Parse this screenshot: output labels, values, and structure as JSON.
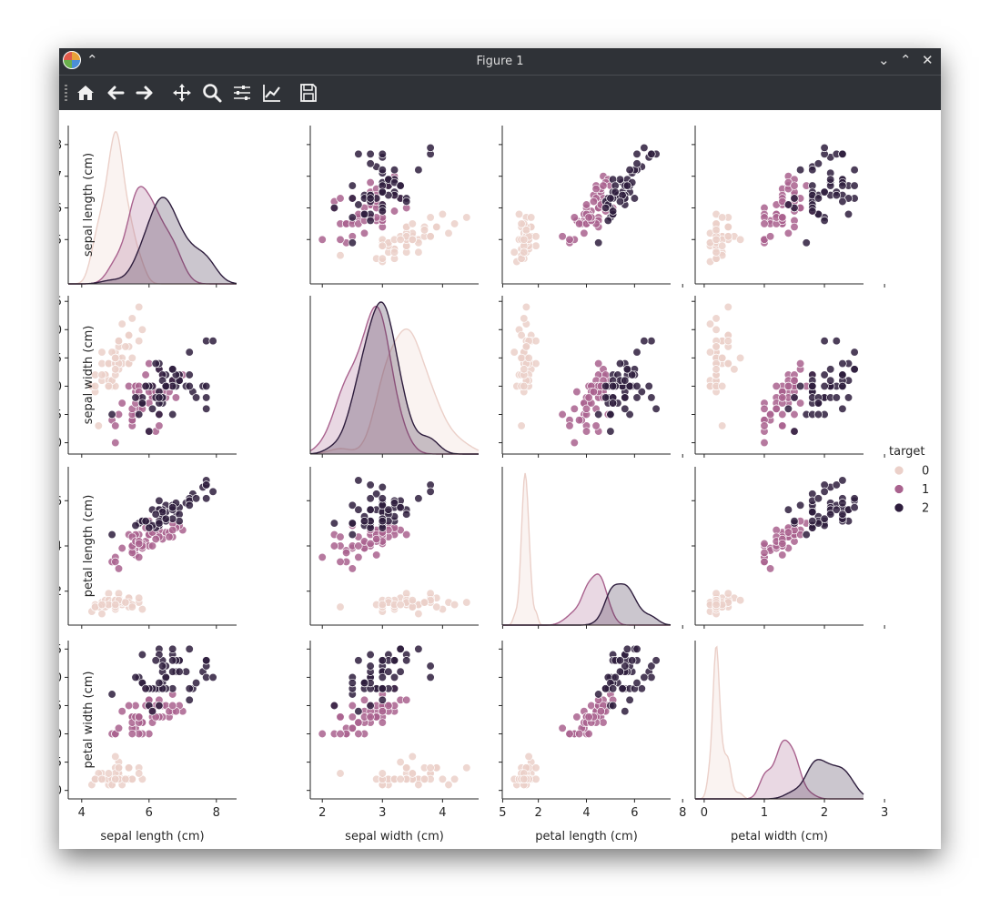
{
  "window": {
    "title": "Figure 1"
  },
  "toolbar": {
    "buttons": [
      "home-icon",
      "back-arrow-icon",
      "forward-arrow-icon",
      "pan-icon",
      "zoom-icon",
      "configure-subplots-icon",
      "edit-axis-icon",
      "save-icon"
    ]
  },
  "colors": {
    "class_0": "#ebd0c9",
    "class_1": "#a9628e",
    "class_2": "#2e1d3d",
    "titlebar": "#2f3237"
  },
  "chart_data": {
    "type": "scatter",
    "kind": "pairplot",
    "variables": [
      "sepal length (cm)",
      "sepal width (cm)",
      "petal length (cm)",
      "petal width (cm)"
    ],
    "axis_ranges": [
      [
        3.6,
        8.6
      ],
      [
        1.8,
        4.6
      ],
      [
        0.5,
        7.5
      ],
      [
        -0.15,
        2.65
      ]
    ],
    "ticks": [
      [
        5,
        6,
        7,
        8
      ],
      [
        2.0,
        2.5,
        3.0,
        3.5,
        4.0,
        4.5
      ],
      [
        2,
        4,
        6
      ],
      [
        0.0,
        0.5,
        1.0,
        1.5,
        2.0,
        2.5
      ]
    ],
    "xticks": [
      [
        4,
        6,
        8
      ],
      [
        2,
        3,
        4,
        5
      ],
      [
        2,
        4,
        6,
        8
      ],
      [
        0,
        1,
        2,
        3
      ]
    ],
    "ytick_labels": [
      [
        "5",
        "6",
        "7",
        "8"
      ],
      [
        "2.0",
        "2.5",
        "3.0",
        "3.5",
        "4.0",
        "4.5"
      ],
      [
        "2",
        "4",
        "6"
      ],
      [
        "0.0",
        "0.5",
        "1.0",
        "1.5",
        "2.0",
        "2.5"
      ]
    ],
    "legend": {
      "title": "target",
      "labels": [
        "0",
        "1",
        "2"
      ],
      "placement": "right"
    },
    "diagonal": "kde",
    "series": [
      {
        "name": "0",
        "points": [
          [
            5.1,
            3.5,
            1.4,
            0.2
          ],
          [
            4.9,
            3.0,
            1.4,
            0.2
          ],
          [
            4.7,
            3.2,
            1.3,
            0.2
          ],
          [
            4.6,
            3.1,
            1.5,
            0.2
          ],
          [
            5.0,
            3.6,
            1.4,
            0.2
          ],
          [
            5.4,
            3.9,
            1.7,
            0.4
          ],
          [
            4.6,
            3.4,
            1.4,
            0.3
          ],
          [
            5.0,
            3.4,
            1.5,
            0.2
          ],
          [
            4.4,
            2.9,
            1.4,
            0.2
          ],
          [
            4.9,
            3.1,
            1.5,
            0.1
          ],
          [
            5.4,
            3.7,
            1.5,
            0.2
          ],
          [
            4.8,
            3.4,
            1.6,
            0.2
          ],
          [
            4.8,
            3.0,
            1.4,
            0.1
          ],
          [
            4.3,
            3.0,
            1.1,
            0.1
          ],
          [
            5.8,
            4.0,
            1.2,
            0.2
          ],
          [
            5.7,
            4.4,
            1.5,
            0.4
          ],
          [
            5.4,
            3.9,
            1.3,
            0.4
          ],
          [
            5.1,
            3.5,
            1.4,
            0.3
          ],
          [
            5.7,
            3.8,
            1.7,
            0.3
          ],
          [
            5.1,
            3.8,
            1.5,
            0.3
          ],
          [
            5.4,
            3.4,
            1.7,
            0.2
          ],
          [
            5.1,
            3.7,
            1.5,
            0.4
          ],
          [
            4.6,
            3.6,
            1.0,
            0.2
          ],
          [
            5.1,
            3.3,
            1.7,
            0.5
          ],
          [
            4.8,
            3.4,
            1.9,
            0.2
          ],
          [
            5.0,
            3.0,
            1.6,
            0.2
          ],
          [
            5.0,
            3.4,
            1.6,
            0.4
          ],
          [
            5.2,
            3.5,
            1.5,
            0.2
          ],
          [
            5.2,
            3.4,
            1.4,
            0.2
          ],
          [
            4.7,
            3.2,
            1.6,
            0.2
          ],
          [
            4.8,
            3.1,
            1.6,
            0.2
          ],
          [
            5.4,
            3.4,
            1.5,
            0.4
          ],
          [
            5.2,
            4.1,
            1.5,
            0.1
          ],
          [
            5.5,
            4.2,
            1.4,
            0.2
          ],
          [
            4.9,
            3.1,
            1.5,
            0.2
          ],
          [
            5.0,
            3.2,
            1.2,
            0.2
          ],
          [
            5.5,
            3.5,
            1.3,
            0.2
          ],
          [
            4.9,
            3.6,
            1.4,
            0.1
          ],
          [
            4.4,
            3.0,
            1.3,
            0.2
          ],
          [
            5.1,
            3.4,
            1.5,
            0.2
          ],
          [
            5.0,
            3.5,
            1.3,
            0.3
          ],
          [
            4.5,
            2.3,
            1.3,
            0.3
          ],
          [
            4.4,
            3.2,
            1.3,
            0.2
          ],
          [
            5.0,
            3.5,
            1.6,
            0.6
          ],
          [
            5.1,
            3.8,
            1.9,
            0.4
          ],
          [
            4.8,
            3.0,
            1.4,
            0.3
          ],
          [
            5.1,
            3.8,
            1.6,
            0.2
          ],
          [
            4.6,
            3.2,
            1.4,
            0.2
          ],
          [
            5.3,
            3.7,
            1.5,
            0.2
          ],
          [
            5.0,
            3.3,
            1.4,
            0.2
          ]
        ]
      },
      {
        "name": "1",
        "points": [
          [
            7.0,
            3.2,
            4.7,
            1.4
          ],
          [
            6.4,
            3.2,
            4.5,
            1.5
          ],
          [
            6.9,
            3.1,
            4.9,
            1.5
          ],
          [
            5.5,
            2.3,
            4.0,
            1.3
          ],
          [
            6.5,
            2.8,
            4.6,
            1.5
          ],
          [
            5.7,
            2.8,
            4.5,
            1.3
          ],
          [
            6.3,
            3.3,
            4.7,
            1.6
          ],
          [
            4.9,
            2.4,
            3.3,
            1.0
          ],
          [
            6.6,
            2.9,
            4.6,
            1.3
          ],
          [
            5.2,
            2.7,
            3.9,
            1.4
          ],
          [
            5.0,
            2.0,
            3.5,
            1.0
          ],
          [
            5.9,
            3.0,
            4.2,
            1.5
          ],
          [
            6.0,
            2.2,
            4.0,
            1.0
          ],
          [
            6.1,
            2.9,
            4.7,
            1.4
          ],
          [
            5.6,
            2.9,
            3.6,
            1.3
          ],
          [
            6.7,
            3.1,
            4.4,
            1.4
          ],
          [
            5.6,
            3.0,
            4.5,
            1.5
          ],
          [
            5.8,
            2.7,
            4.1,
            1.0
          ],
          [
            6.2,
            2.2,
            4.5,
            1.5
          ],
          [
            5.6,
            2.5,
            3.9,
            1.1
          ],
          [
            5.9,
            3.2,
            4.8,
            1.8
          ],
          [
            6.1,
            2.8,
            4.0,
            1.3
          ],
          [
            6.3,
            2.5,
            4.9,
            1.5
          ],
          [
            6.1,
            2.8,
            4.7,
            1.2
          ],
          [
            6.4,
            2.9,
            4.3,
            1.3
          ],
          [
            6.6,
            3.0,
            4.4,
            1.4
          ],
          [
            6.8,
            2.8,
            4.8,
            1.4
          ],
          [
            6.7,
            3.0,
            5.0,
            1.7
          ],
          [
            6.0,
            2.9,
            4.5,
            1.5
          ],
          [
            5.7,
            2.6,
            3.5,
            1.0
          ],
          [
            5.5,
            2.4,
            3.8,
            1.1
          ],
          [
            5.5,
            2.4,
            3.7,
            1.0
          ],
          [
            5.8,
            2.7,
            3.9,
            1.2
          ],
          [
            6.0,
            2.7,
            5.1,
            1.6
          ],
          [
            5.4,
            3.0,
            4.5,
            1.5
          ],
          [
            6.0,
            3.4,
            4.5,
            1.6
          ],
          [
            6.7,
            3.1,
            4.7,
            1.5
          ],
          [
            6.3,
            2.3,
            4.4,
            1.3
          ],
          [
            5.6,
            3.0,
            4.1,
            1.3
          ],
          [
            5.5,
            2.5,
            4.0,
            1.3
          ],
          [
            5.5,
            2.6,
            4.4,
            1.2
          ],
          [
            6.1,
            3.0,
            4.6,
            1.4
          ],
          [
            5.8,
            2.6,
            4.0,
            1.2
          ],
          [
            5.0,
            2.3,
            3.3,
            1.0
          ],
          [
            5.6,
            2.7,
            4.2,
            1.3
          ],
          [
            5.7,
            3.0,
            4.2,
            1.2
          ],
          [
            5.7,
            2.9,
            4.2,
            1.3
          ],
          [
            6.2,
            2.9,
            4.3,
            1.3
          ],
          [
            5.1,
            2.5,
            3.0,
            1.1
          ],
          [
            5.7,
            2.8,
            4.1,
            1.3
          ]
        ]
      },
      {
        "name": "2",
        "points": [
          [
            6.3,
            3.3,
            6.0,
            2.5
          ],
          [
            5.8,
            2.7,
            5.1,
            1.9
          ],
          [
            7.1,
            3.0,
            5.9,
            2.1
          ],
          [
            6.3,
            2.9,
            5.6,
            1.8
          ],
          [
            6.5,
            3.0,
            5.8,
            2.2
          ],
          [
            7.6,
            3.0,
            6.6,
            2.1
          ],
          [
            4.9,
            2.5,
            4.5,
            1.7
          ],
          [
            7.3,
            2.9,
            6.3,
            1.8
          ],
          [
            6.7,
            2.5,
            5.8,
            1.8
          ],
          [
            7.2,
            3.6,
            6.1,
            2.5
          ],
          [
            6.5,
            3.2,
            5.1,
            2.0
          ],
          [
            6.4,
            2.7,
            5.3,
            1.9
          ],
          [
            6.8,
            3.0,
            5.5,
            2.1
          ],
          [
            5.7,
            2.5,
            5.0,
            2.0
          ],
          [
            5.8,
            2.8,
            5.1,
            2.4
          ],
          [
            6.4,
            3.2,
            5.3,
            2.3
          ],
          [
            6.5,
            3.0,
            5.5,
            1.8
          ],
          [
            7.7,
            3.8,
            6.7,
            2.2
          ],
          [
            7.7,
            2.6,
            6.9,
            2.3
          ],
          [
            6.0,
            2.2,
            5.0,
            1.5
          ],
          [
            6.9,
            3.2,
            5.7,
            2.3
          ],
          [
            5.6,
            2.8,
            4.9,
            2.0
          ],
          [
            7.7,
            2.8,
            6.7,
            2.0
          ],
          [
            6.3,
            2.7,
            4.9,
            1.8
          ],
          [
            6.7,
            3.3,
            5.7,
            2.1
          ],
          [
            7.2,
            3.2,
            6.0,
            1.8
          ],
          [
            6.2,
            2.8,
            4.8,
            1.8
          ],
          [
            6.1,
            3.0,
            4.9,
            1.8
          ],
          [
            6.4,
            2.8,
            5.6,
            2.1
          ],
          [
            7.2,
            3.0,
            5.8,
            1.6
          ],
          [
            7.4,
            2.8,
            6.1,
            1.9
          ],
          [
            7.9,
            3.8,
            6.4,
            2.0
          ],
          [
            6.4,
            2.8,
            5.6,
            2.2
          ],
          [
            6.3,
            2.8,
            5.1,
            1.5
          ],
          [
            6.1,
            2.6,
            5.6,
            1.4
          ],
          [
            7.7,
            3.0,
            6.1,
            2.3
          ],
          [
            6.3,
            3.4,
            5.6,
            2.4
          ],
          [
            6.4,
            3.1,
            5.5,
            1.8
          ],
          [
            6.0,
            3.0,
            4.8,
            1.8
          ],
          [
            6.9,
            3.1,
            5.4,
            2.1
          ],
          [
            6.7,
            3.1,
            5.6,
            2.4
          ],
          [
            6.9,
            3.1,
            5.1,
            2.3
          ],
          [
            5.8,
            2.7,
            5.1,
            1.9
          ],
          [
            6.8,
            3.2,
            5.9,
            2.3
          ],
          [
            6.7,
            3.3,
            5.7,
            2.5
          ],
          [
            6.7,
            3.0,
            5.2,
            2.3
          ],
          [
            6.3,
            2.5,
            5.0,
            1.9
          ],
          [
            6.5,
            3.0,
            5.2,
            2.0
          ],
          [
            6.2,
            3.4,
            5.4,
            2.3
          ],
          [
            5.9,
            3.0,
            5.1,
            1.8
          ]
        ]
      }
    ]
  }
}
